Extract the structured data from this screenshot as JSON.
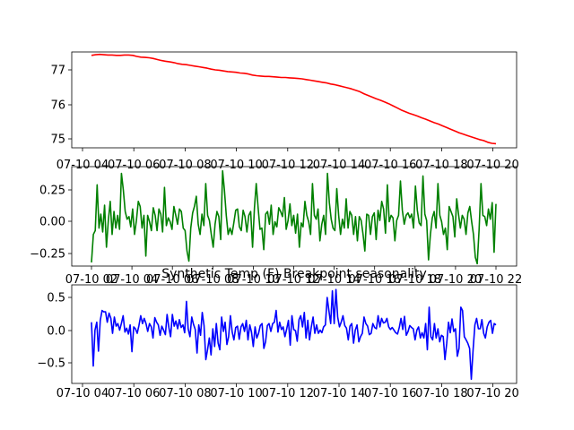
{
  "figure": {
    "background": "#ffffff",
    "axis_color": "#000000"
  },
  "chart_data": [
    {
      "type": "line",
      "title": "",
      "xlabel": "",
      "ylabel": "",
      "color": "#ff0000",
      "x_tick_labels": [
        "07-10 04",
        "07-10 06",
        "07-10 08",
        "07-10 10",
        "07-10 12",
        "07-10 14",
        "07-10 16",
        "07-10 18",
        "07-10 20"
      ],
      "y_tick_labels": [
        "75",
        "76",
        "77"
      ],
      "ylim": [
        74.8,
        77.5
      ],
      "grid": false,
      "series": [
        {
          "values": [
            77.42,
            77.44,
            77.45,
            77.44,
            77.43,
            77.43,
            77.42,
            77.42,
            77.43,
            77.43,
            77.42,
            77.39,
            77.37,
            77.36,
            77.35,
            77.33,
            77.3,
            77.27,
            77.25,
            77.23,
            77.21,
            77.18,
            77.16,
            77.15,
            77.13,
            77.11,
            77.09,
            77.07,
            77.05,
            77.02,
            77.0,
            76.99,
            76.97,
            76.95,
            76.94,
            76.93,
            76.91,
            76.9,
            76.88,
            76.85,
            76.83,
            76.82,
            76.81,
            76.81,
            76.8,
            76.79,
            76.78,
            76.78,
            76.77,
            76.76,
            76.75,
            76.74,
            76.72,
            76.7,
            76.68,
            76.66,
            76.64,
            76.62,
            76.59,
            76.57,
            76.54,
            76.51,
            76.48,
            76.45,
            76.41,
            76.37,
            76.31,
            76.26,
            76.21,
            76.16,
            76.12,
            76.07,
            76.02,
            75.96,
            75.9,
            75.84,
            75.79,
            75.74,
            75.7,
            75.66,
            75.61,
            75.57,
            75.52,
            75.47,
            75.43,
            75.38,
            75.33,
            75.28,
            75.23,
            75.18,
            75.14,
            75.1,
            75.06,
            75.02,
            74.98,
            74.95,
            74.9,
            74.87,
            74.86
          ]
        }
      ]
    },
    {
      "type": "line",
      "title": "",
      "xlabel": "",
      "ylabel": "",
      "color": "#008000",
      "x_tick_labels": [
        "07-10 02",
        "07-10 04",
        "07-10 06",
        "07-10 08",
        "07-10 10",
        "07-10 12",
        "07-10 14",
        "07-10 16",
        "07-10 18",
        "07-10 20",
        "07-10 22"
      ],
      "y_tick_labels": [
        "−0.25",
        "0.00",
        "0.25"
      ],
      "ylim": [
        -0.35,
        0.42
      ],
      "grid": false,
      "series": [
        {
          "values": [
            -0.32,
            -0.1,
            -0.07,
            0.29,
            -0.05,
            0.06,
            -0.08,
            0.13,
            -0.2,
            0.01,
            0.16,
            -0.1,
            0.08,
            -0.05,
            0.05,
            -0.06,
            0.38,
            0.25,
            0.08,
            0.02,
            0.04,
            -0.04,
            0.1,
            -0.1,
            0.01,
            0.16,
            0.12,
            -0.05,
            0.05,
            -0.27,
            0.05,
            0.0,
            -0.07,
            0.11,
            0.05,
            -0.07,
            0.1,
            0.06,
            -0.08,
            0.27,
            -0.03,
            0.03,
            0.0,
            -0.06,
            0.12,
            0.05,
            -0.02,
            0.1,
            0.08,
            -0.05,
            -0.07,
            -0.23,
            -0.31,
            -0.05,
            0.07,
            0.12,
            0.2,
            -0.02,
            -0.1,
            0.06,
            -0.03,
            0.3,
            0.05,
            0.01,
            -0.1,
            -0.2,
            -0.02,
            0.08,
            0.04,
            -0.14,
            0.4,
            0.25,
            0.05,
            -0.1,
            -0.05,
            -0.1,
            -0.01,
            0.09,
            0.1,
            -0.04,
            -0.07,
            0.09,
            0.04,
            -0.08,
            0.05,
            0.08,
            -0.2,
            0.11,
            0.3,
            0.11,
            -0.06,
            -0.05,
            -0.22,
            0.06,
            0.08,
            -0.02,
            0.13,
            -0.1,
            0.0,
            -0.04,
            0.11,
            0.08,
            0.04,
            0.19,
            -0.06,
            0.01,
            0.14,
            -0.03,
            0.05,
            -0.09,
            0.06,
            -0.2,
            -0.01,
            -0.04,
            0.16,
            0.05,
            0.0,
            -0.1,
            0.3,
            0.05,
            0.02,
            0.1,
            -0.15,
            -0.02,
            0.05,
            -0.1,
            0.38,
            0.15,
            0.02,
            -0.05,
            -0.07,
            0.26,
            0.05,
            -0.1,
            0.02,
            -0.05,
            0.18,
            -0.05,
            0.08,
            0.05,
            -0.1,
            0.04,
            -0.15,
            0.04,
            0.01,
            -0.1,
            -0.23,
            0.06,
            0.05,
            -0.1,
            0.04,
            0.07,
            -0.14,
            0.09,
            0.01,
            0.16,
            0.1,
            -0.09,
            0.29,
            0.0,
            0.05,
            0.03,
            -0.15,
            0.01,
            0.05,
            0.32,
            0.09,
            -0.02,
            0.05,
            0.07,
            0.03,
            0.06,
            -0.05,
            0.28,
            0.09,
            -0.01,
            -0.03,
            0.36,
            0.06,
            0.01,
            -0.3,
            -0.1,
            0.03,
            0.08,
            -0.05,
            0.3,
            0.05,
            0.0,
            -0.1,
            -0.05,
            -0.22,
            0.12,
            0.08,
            0.04,
            -0.12,
            0.18,
            0.06,
            -0.05,
            0.05,
            0.02,
            -0.1,
            0.07,
            0.12,
            0.0,
            -0.1,
            -0.28,
            -0.33,
            -0.06,
            0.3,
            0.05,
            0.04,
            -0.03,
            0.1,
            0.02,
            0.15,
            -0.24,
            0.14
          ]
        }
      ]
    },
    {
      "type": "line",
      "title": "Synthetic Temp (F) Breakpoint seasonality",
      "xlabel": "",
      "ylabel": "",
      "color": "#0000ff",
      "x_tick_labels": [
        "07-10 04",
        "07-10 06",
        "07-10 08",
        "07-10 10",
        "07-10 12",
        "07-10 14",
        "07-10 16",
        "07-10 18",
        "07-10 20"
      ],
      "y_tick_labels": [
        "−0.5",
        "0.0",
        "0.5"
      ],
      "ylim": [
        -0.82,
        0.68
      ],
      "grid": false,
      "series": [
        {
          "values": [
            0.12,
            -0.55,
            0.0,
            0.12,
            -0.32,
            0.15,
            0.3,
            0.28,
            0.28,
            0.12,
            0.26,
            0.18,
            -0.05,
            0.2,
            0.06,
            0.1,
            0.0,
            0.1,
            0.22,
            -0.03,
            0.03,
            -0.06,
            0.08,
            -0.33,
            0.05,
            0.02,
            -0.05,
            0.07,
            0.22,
            0.1,
            0.18,
            0.1,
            -0.02,
            0.1,
            0.05,
            -0.12,
            0.19,
            0.12,
            0.08,
            -0.08,
            0.06,
            0.0,
            -0.07,
            0.24,
            0.04,
            -0.1,
            0.24,
            0.06,
            0.14,
            0.02,
            0.16,
            0.04,
            0.08,
            -0.04,
            0.44,
            0.02,
            -0.1,
            0.2,
            0.09,
            0.01,
            -0.35,
            0.08,
            -0.08,
            0.27,
            0.07,
            -0.45,
            -0.3,
            -0.12,
            -0.38,
            0.02,
            -0.25,
            0.1,
            -0.2,
            -0.3,
            0.2,
            -0.02,
            0.12,
            -0.22,
            -0.1,
            0.22,
            -0.03,
            -0.15,
            0.04,
            0.06,
            -0.14,
            0.05,
            0.1,
            -0.02,
            0.15,
            -0.15,
            0.08,
            -0.03,
            -0.25,
            0.05,
            -0.12,
            -0.05,
            0.07,
            0.1,
            -0.28,
            -0.18,
            0.07,
            0.1,
            -0.02,
            0.1,
            0.12,
            0.3,
            -0.03,
            0.12,
            0.01,
            0.05,
            -0.1,
            0.02,
            0.15,
            -0.23,
            0.22,
            0.01,
            -0.01,
            -0.17,
            0.16,
            0.22,
            0.05,
            0.27,
            -0.12,
            0.15,
            -0.15,
            0.05,
            0.2,
            -0.05,
            0.08,
            -0.05,
            0.0,
            -0.04,
            0.05,
            0.08,
            0.5,
            0.3,
            0.1,
            0.6,
            0.1,
            0.62,
            0.2,
            0.05,
            0.12,
            0.22,
            0.07,
            0.03,
            -0.15,
            0.06,
            0.1,
            -0.2,
            0.0,
            0.08,
            -0.18,
            -0.1,
            -0.05,
            0.2,
            0.1,
            0.06,
            -0.07,
            -0.05,
            0.1,
            0.04,
            0.02,
            0.22,
            0.05,
            0.18,
            0.11,
            0.12,
            0.18,
            0.05,
            0.01,
            0.04,
            0.0,
            -0.04,
            -0.06,
            0.04,
            0.18,
            0.01,
            0.21,
            -0.08,
            -0.02,
            0.07,
            0.04,
            0.02,
            -0.15,
            0.0,
            0.05,
            -0.12,
            -0.04,
            -0.12,
            0.1,
            -0.3,
            0.35,
            -0.1,
            -0.15,
            0.1,
            -0.12,
            0.02,
            -0.18,
            -0.08,
            -0.1,
            -0.45,
            -0.2,
            0.12,
            -0.04,
            0.17,
            -0.02,
            0.02,
            -0.4,
            -0.28,
            0.35,
            0.3,
            -0.1,
            -0.15,
            -0.2,
            -0.28,
            -0.75,
            -0.3,
            0.08,
            0.18,
            0.02,
            0.02,
            0.16,
            -0.05,
            -0.12,
            0.05,
            0.12,
            0.15,
            -0.05,
            0.1,
            0.08
          ]
        }
      ]
    }
  ]
}
